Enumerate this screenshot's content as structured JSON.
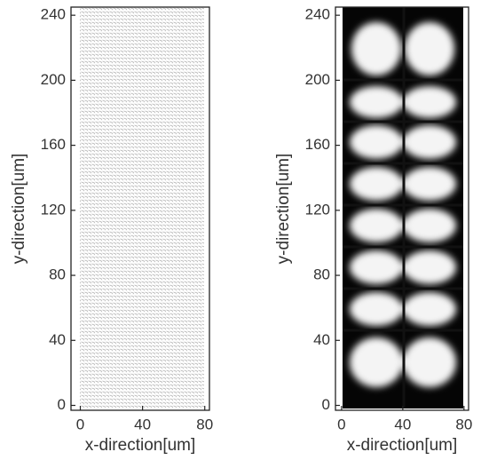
{
  "chart_data": [
    {
      "type": "vector-field",
      "xlabel": "x-direction[um]",
      "ylabel": "y-direction[um]",
      "xlim": [
        -6,
        83
      ],
      "ylim": [
        -3,
        245
      ],
      "xticks": [
        0,
        40,
        80
      ],
      "yticks": [
        0,
        40,
        80,
        120,
        160,
        200,
        240
      ]
    },
    {
      "type": "heatmap",
      "xlabel": "x-direction[um]",
      "ylabel": "y-direction[um]",
      "xlim": [
        -4,
        83
      ],
      "ylim": [
        -3,
        245
      ],
      "xticks": [
        0,
        40,
        80
      ],
      "yticks": [
        0,
        40,
        80,
        120,
        160,
        200,
        240
      ]
    }
  ]
}
